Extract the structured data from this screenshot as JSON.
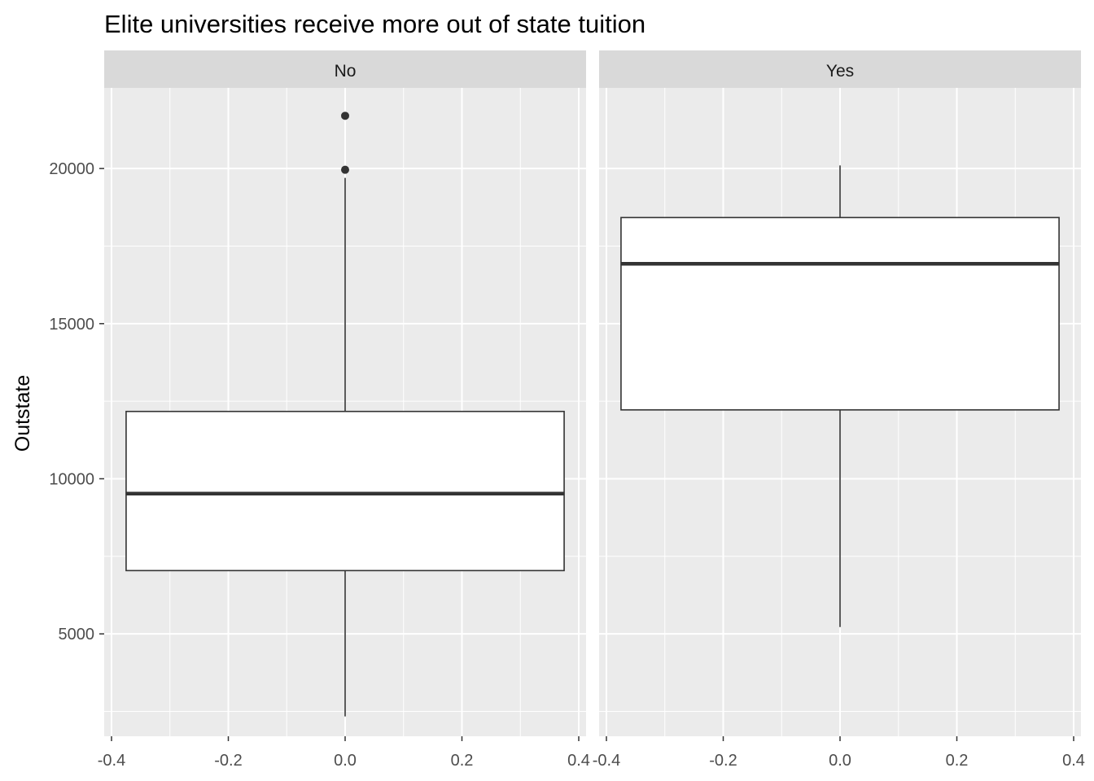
{
  "chart_data": {
    "type": "boxplot",
    "title": "Elite universities receive more out of state tuition",
    "xlabel": "",
    "ylabel": "Outstate",
    "xlim": [
      -0.4,
      0.4
    ],
    "ylim": [
      1700,
      22600
    ],
    "x_ticks": [
      -0.4,
      -0.2,
      0.0,
      0.2,
      0.4
    ],
    "x_tick_labels": [
      "-0.4",
      "-0.2",
      "0.0",
      "0.2",
      "0.4"
    ],
    "y_ticks": [
      5000,
      10000,
      15000,
      20000
    ],
    "y_tick_labels": [
      "5000",
      "10000",
      "15000",
      "20000"
    ],
    "box_halfwidth": 0.375,
    "grid": true,
    "panels": [
      {
        "facet_label": "No",
        "whisker_low": 2340,
        "q1": 7040,
        "median": 9520,
        "q3": 12170,
        "whisker_high": 19700,
        "outliers": [
          19960,
          21700
        ]
      },
      {
        "facet_label": "Yes",
        "whisker_low": 5220,
        "q1": 12220,
        "median": 16930,
        "q3": 18420,
        "whisker_high": 20100,
        "outliers": []
      }
    ]
  }
}
